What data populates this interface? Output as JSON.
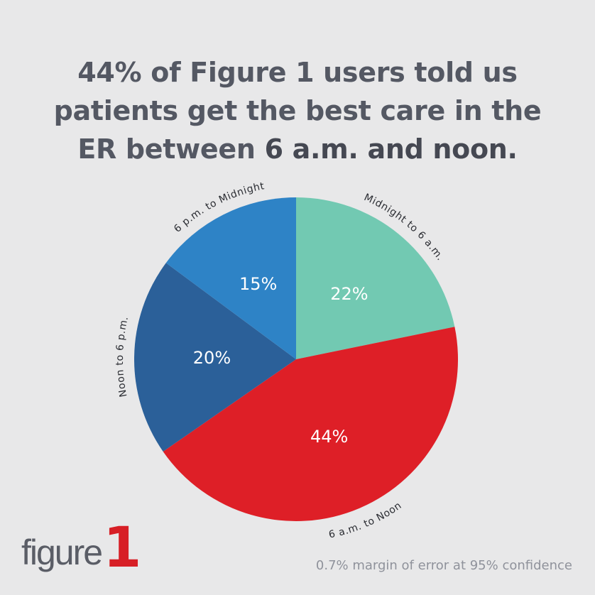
{
  "headline": {
    "line1": "44% of Figure 1 users told us",
    "line2": "patients get the best care in the",
    "line3_prefix": "ER between ",
    "line3_emphasis": "6 a.m. and noon."
  },
  "chart_data": {
    "type": "pie",
    "title": "",
    "slices": [
      {
        "label": "Midnight to 6 a.m.",
        "value": 22,
        "value_label": "22%",
        "color": "#72c9b2"
      },
      {
        "label": "6 a.m. to Noon",
        "value": 44,
        "value_label": "44%",
        "color": "#de1f27"
      },
      {
        "label": "Noon to 6 p.m.",
        "value": 20,
        "value_label": "20%",
        "color": "#2b6099"
      },
      {
        "label": "6 p.m. to Midnight",
        "value": 15,
        "value_label": "15%",
        "color": "#2e83c6"
      }
    ],
    "start": "top",
    "direction": "clockwise",
    "legend": "none"
  },
  "logo": {
    "word": "figure",
    "number": "1"
  },
  "footnote": "0.7% margin of error at 95% confidence",
  "colors": {
    "background": "#e8e8e9",
    "headline_text": "#545863",
    "brand_red": "#d71f26",
    "footnote_text": "#8f929b"
  }
}
